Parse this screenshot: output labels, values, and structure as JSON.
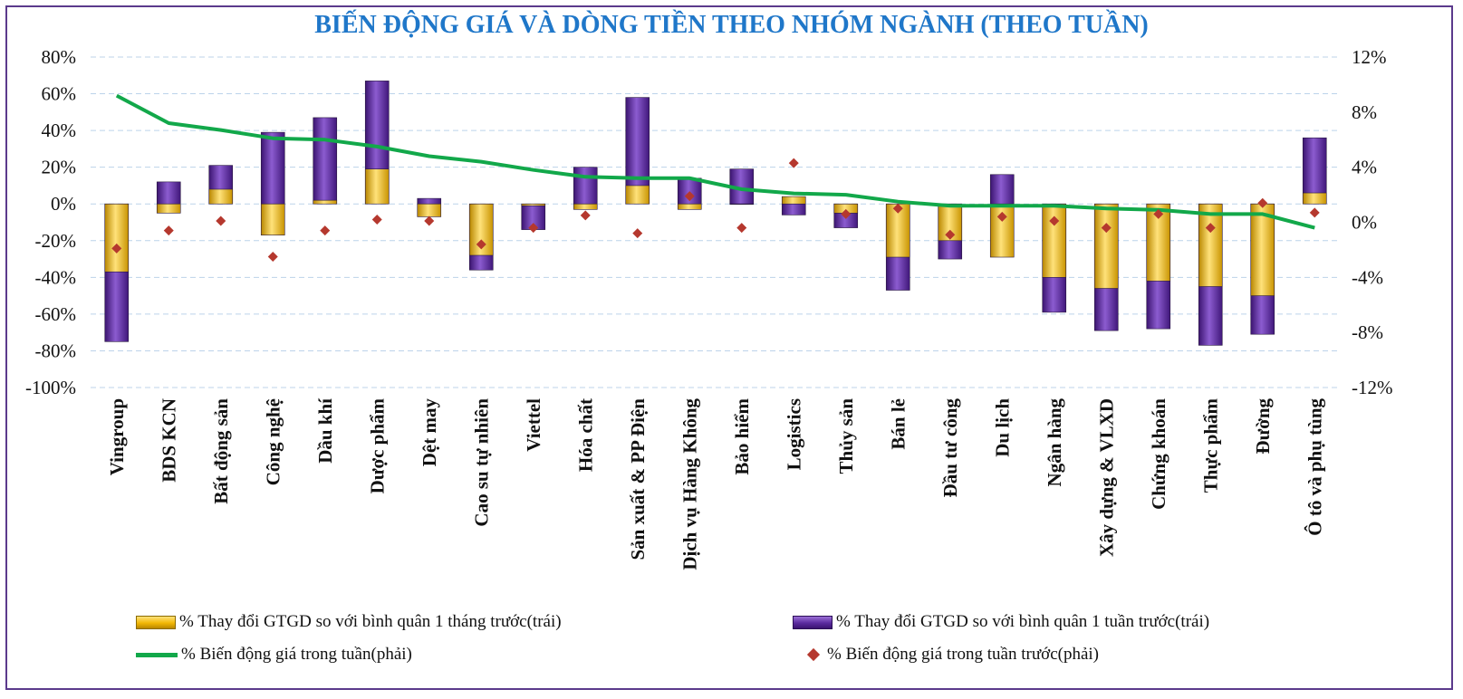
{
  "chart_data": {
    "type": "bar",
    "title": "BIẾN ĐỘNG GIÁ VÀ DÒNG TIỀN THEO NHÓM NGÀNH (THEO TUẦN)",
    "categories": [
      "Vingroup",
      "BDS KCN",
      "Bất động sản",
      "Công nghệ",
      "Dầu khí",
      "Dược phẩm",
      "Dệt may",
      "Cao su tự nhiên",
      "Viettel",
      "Hóa chất",
      "Sản xuất & PP Điện",
      "Dịch vụ Hàng Không",
      "Bảo hiểm",
      "Logistics",
      "Thủy sản",
      "Bán lẻ",
      "Đầu tư công",
      "Du lịch",
      "Ngân hàng",
      "Xây dựng & VLXD",
      "Chứng khoán",
      "Thực phẩm",
      "Đường",
      "Ô tô và phụ tùng"
    ],
    "y_left": {
      "ylim": [
        -100,
        80
      ],
      "ticks": [
        "80%",
        "60%",
        "40%",
        "20%",
        "0%",
        "-20%",
        "-40%",
        "-60%",
        "-80%",
        "-100%"
      ]
    },
    "y_right": {
      "ylim": [
        -12,
        12
      ],
      "ticks": [
        "12%",
        "8%",
        "4%",
        "0%",
        "-4%",
        "-8%",
        "-12%"
      ]
    },
    "grid": "horizontal dashed",
    "legend_position": "bottom",
    "series": [
      {
        "name": "% Thay đổi GTGD so với bình quân 1 tháng trước(trái)",
        "axis": "left",
        "kind": "bar",
        "color": "#f2b705",
        "values": [
          -37,
          -5,
          8,
          -17,
          2,
          19,
          -7,
          -28,
          -1,
          -3,
          10,
          -3,
          0,
          4,
          -5,
          -29,
          -20,
          -29,
          -40,
          -46,
          -42,
          -45,
          -50,
          6
        ]
      },
      {
        "name": "% Thay đổi GTGD so với bình quân 1 tuần trước(trái)",
        "axis": "left",
        "kind": "bar",
        "color": "#5a2a9e",
        "values": [
          -75,
          12,
          21,
          39,
          47,
          67,
          3,
          -36,
          -14,
          20,
          58,
          14,
          19,
          -6,
          -13,
          -47,
          -30,
          16,
          -59,
          -69,
          -68,
          -77,
          -71,
          36
        ]
      },
      {
        "name": "% Biến động giá trong tuần(phải)",
        "axis": "right",
        "kind": "line",
        "color": "#12a84a",
        "values": [
          9.2,
          7.2,
          6.7,
          6.1,
          6.0,
          5.5,
          4.8,
          4.4,
          3.8,
          3.3,
          3.2,
          3.2,
          2.4,
          2.1,
          2.0,
          1.5,
          1.2,
          1.2,
          1.2,
          1.0,
          0.9,
          0.6,
          0.6,
          -0.4
        ]
      },
      {
        "name": "% Biến động giá trong tuần trước(phải)",
        "axis": "right",
        "kind": "scatter",
        "color": "#b5382e",
        "values": [
          -1.9,
          -0.6,
          0.1,
          -2.5,
          -0.6,
          0.2,
          0.1,
          -1.6,
          -0.4,
          0.5,
          -0.8,
          1.9,
          -0.4,
          4.3,
          0.6,
          1.0,
          -0.9,
          0.4,
          0.1,
          -0.4,
          0.6,
          -0.4,
          1.4,
          0.7
        ]
      }
    ]
  },
  "colors": {
    "title": "#1f77c9",
    "frame": "#5b3a8c",
    "gold": "#f2b705",
    "purple": "#5a2a9e",
    "line": "#12a84a",
    "dot": "#b5382e"
  }
}
